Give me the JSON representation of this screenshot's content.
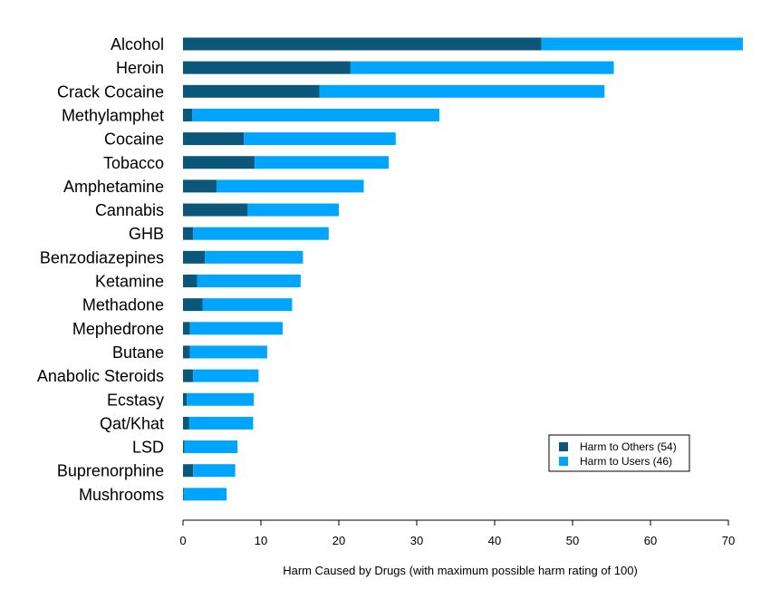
{
  "chart_data": {
    "type": "bar",
    "orientation": "horizontal",
    "stacked": true,
    "categories": [
      "Alcohol",
      "Heroin",
      "Crack Cocaine",
      "Methylamphet",
      "Cocaine",
      "Tobacco",
      "Amphetamine",
      "Cannabis",
      "GHB",
      "Benzodiazepines",
      "Ketamine",
      "Methadone",
      "Mephedrone",
      "Butane",
      "Anabolic Steroids",
      "Ecstasy",
      "Qat/Khat",
      "LSD",
      "Buprenorphine",
      "Mushrooms"
    ],
    "series": [
      {
        "name": "Harm to Others (54)",
        "color": "#0a5779",
        "values": [
          46,
          21.5,
          17.5,
          1.2,
          7.8,
          9.2,
          4.3,
          8.3,
          1.3,
          2.8,
          1.8,
          2.5,
          0.9,
          0.9,
          1.3,
          0.5,
          0.8,
          0.2,
          1.3,
          0.1
        ]
      },
      {
        "name": "Harm to Users (46)",
        "color": "#00a5ff",
        "values": [
          26,
          33.8,
          36.6,
          31.7,
          19.5,
          17.2,
          18.9,
          11.7,
          17.4,
          12.6,
          13.3,
          11.5,
          11.9,
          9.9,
          8.4,
          8.6,
          8.2,
          6.8,
          5.4,
          5.5
        ]
      }
    ],
    "xlabel": "Harm Caused by Drugs (with maximum possible harm rating of 100)",
    "ylabel": "",
    "xlim": [
      0,
      70
    ],
    "xticks": [
      0,
      10,
      20,
      30,
      40,
      50,
      60,
      70
    ],
    "grid": false,
    "legend_position": "bottom-right"
  }
}
